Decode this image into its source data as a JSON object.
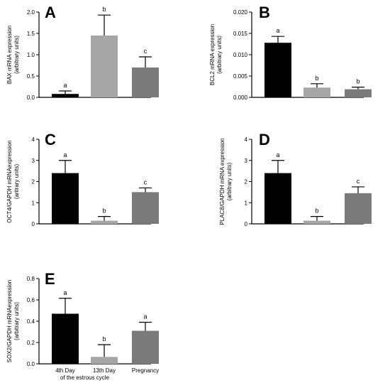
{
  "chart_data": [
    {
      "panel": "A",
      "type": "bar",
      "categories": [
        "4th Day",
        "13th Day",
        "Pregnancy"
      ],
      "values": [
        0.08,
        1.45,
        0.7
      ],
      "errors": [
        0.07,
        0.48,
        0.25
      ],
      "significance": [
        "a",
        "b",
        "c"
      ],
      "ylabel_lines": [
        "BAX mRNA expression",
        "(arbitrary units)"
      ],
      "ylim": [
        0,
        2.0
      ],
      "yticks": [
        "0.0",
        "0.5",
        "1.0",
        "1.5",
        "2.0"
      ],
      "bar_colors": [
        "#000000",
        "#a6a6a6",
        "#7a7a7a"
      ]
    },
    {
      "panel": "B",
      "type": "bar",
      "categories": [
        "4th Day",
        "13th Day",
        "Pregnancy"
      ],
      "values": [
        0.0128,
        0.0023,
        0.0019
      ],
      "errors": [
        0.0015,
        0.0009,
        0.0005
      ],
      "significance": [
        "a",
        "b",
        "b"
      ],
      "ylabel_lines": [
        "BCL2 mRNA expression",
        "(arbitrary units)"
      ],
      "ylim": [
        0,
        0.02
      ],
      "yticks": [
        "0.000",
        "0.005",
        "0.010",
        "0.015",
        "0.020"
      ],
      "bar_colors": [
        "#000000",
        "#a6a6a6",
        "#7a7a7a"
      ]
    },
    {
      "panel": "C",
      "type": "bar",
      "categories": [
        "4th Day",
        "13th Day",
        "Pregnancy"
      ],
      "values": [
        2.4,
        0.15,
        1.5
      ],
      "errors": [
        0.6,
        0.2,
        0.2
      ],
      "significance": [
        "a",
        "b",
        "c"
      ],
      "ylabel_lines": [
        "OCT4/GAPDH mRNAexpression",
        "(aritrary units)"
      ],
      "ylim": [
        0,
        4
      ],
      "yticks": [
        "0",
        "1",
        "2",
        "3",
        "4"
      ],
      "bar_colors": [
        "#000000",
        "#a6a6a6",
        "#7a7a7a"
      ]
    },
    {
      "panel": "D",
      "type": "bar",
      "categories": [
        "4th Day",
        "13th Day",
        "Pregnancy"
      ],
      "values": [
        2.4,
        0.15,
        1.45
      ],
      "errors": [
        0.6,
        0.2,
        0.3
      ],
      "significance": [
        "a",
        "b",
        "c"
      ],
      "ylabel_lines": [
        "PLAC8/GAPDH mRNA expression",
        "(arbitrary units)"
      ],
      "ylim": [
        0,
        4
      ],
      "yticks": [
        "0",
        "1",
        "2",
        "3",
        "4"
      ],
      "bar_colors": [
        "#000000",
        "#a6a6a6",
        "#7a7a7a"
      ]
    },
    {
      "panel": "E",
      "type": "bar",
      "categories": [
        "4th Day",
        "13th Day",
        "Pregnancy"
      ],
      "values": [
        0.47,
        0.065,
        0.31
      ],
      "errors": [
        0.145,
        0.115,
        0.08
      ],
      "significance": [
        "a",
        "b",
        "a"
      ],
      "ylabel_lines": [
        "SOX2/GAPDH mRNAexpression",
        "(arbitrary units)"
      ],
      "ylim": [
        0,
        0.8
      ],
      "yticks": [
        "0.0",
        "0.2",
        "0.4",
        "0.6",
        "0.8"
      ],
      "bar_colors": [
        "#000000",
        "#a6a6a6",
        "#7a7a7a"
      ],
      "group_label": "of the estrous cycle"
    }
  ]
}
